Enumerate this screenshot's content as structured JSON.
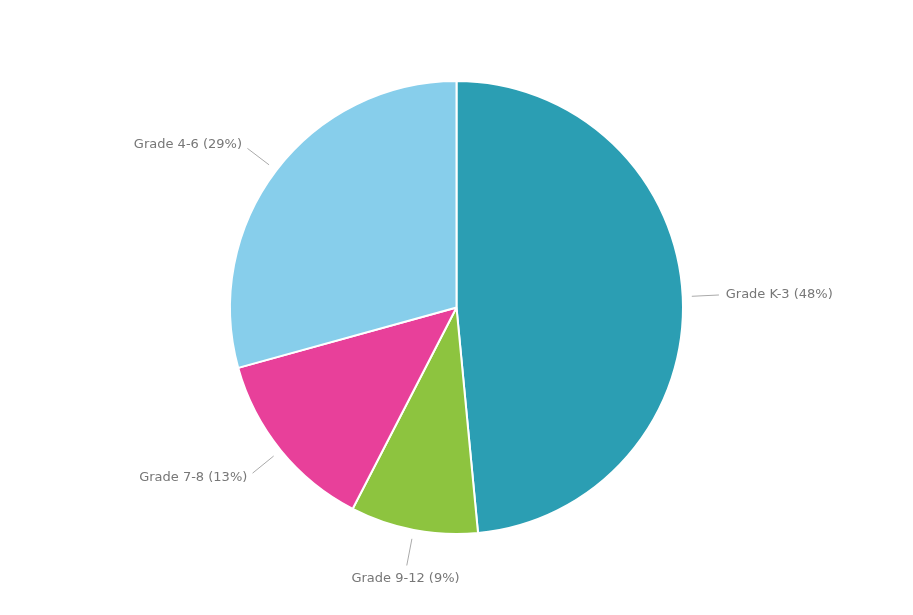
{
  "chart_data": {
    "type": "pie",
    "categories": [
      "Grade K-3 (48%)",
      "Grade 9-12 (9%)",
      "Grade 7-8 (13%)",
      "Grade 4-6 (29%)"
    ],
    "values": [
      48,
      9,
      13,
      29
    ],
    "colors": [
      "#2B9EB3",
      "#8DC43F",
      "#E8409A",
      "#87CEEB"
    ]
  }
}
